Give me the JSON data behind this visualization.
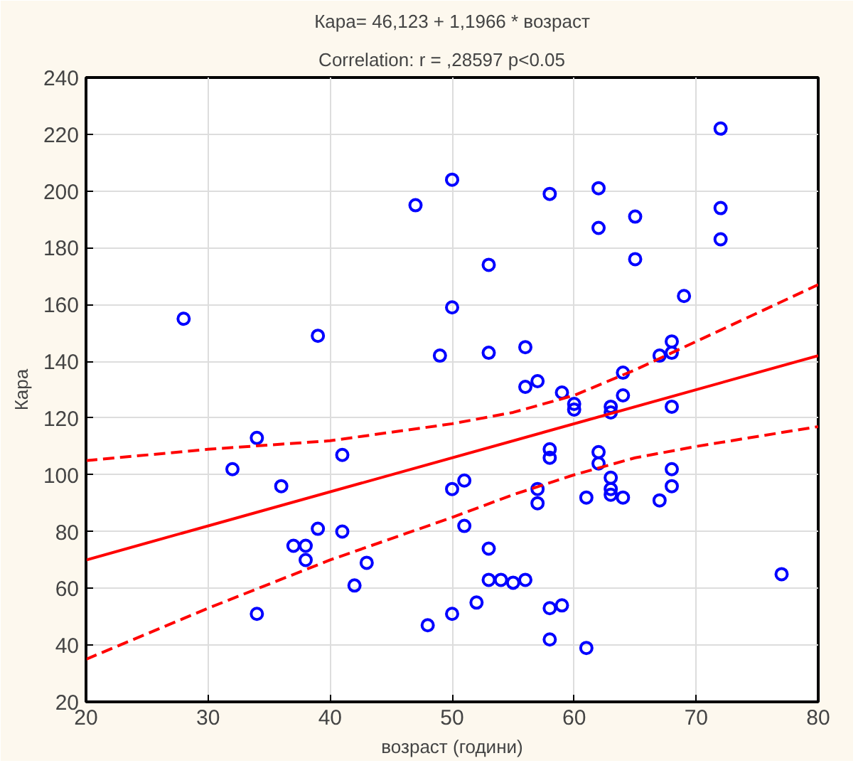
{
  "chart_data": {
    "type": "scatter",
    "title": "Кара= 46,123 + 1,1966 * возраст",
    "subtitle": "Correlation: r = ,28597     p<0.05",
    "xlabel": "возраст (години)",
    "ylabel": "Кара",
    "xlim": [
      20,
      80
    ],
    "xticks": [
      20,
      30,
      40,
      50,
      60,
      70,
      80
    ],
    "ylim": [
      20,
      240
    ],
    "yticks": [
      20,
      40,
      60,
      80,
      100,
      120,
      140,
      160,
      180,
      200,
      220,
      240
    ],
    "grid": true,
    "series": [
      {
        "color": "#0000ff",
        "marker": "circle",
        "x": [
          28,
          32,
          34,
          34,
          36,
          37,
          38,
          38,
          39,
          39,
          41,
          41,
          42,
          43,
          47,
          48,
          49,
          50,
          50,
          50,
          50,
          51,
          51,
          52,
          53,
          53,
          53,
          53,
          54,
          55,
          56,
          56,
          56,
          57,
          57,
          57,
          58,
          58,
          58,
          58,
          58,
          59,
          59,
          60,
          60,
          61,
          61,
          62,
          62,
          62,
          62,
          63,
          63,
          63,
          63,
          63,
          64,
          64,
          64,
          65,
          65,
          67,
          67,
          68,
          68,
          68,
          68,
          68,
          69,
          72,
          72,
          72,
          77
        ],
        "values": [
          155,
          102,
          113,
          51,
          96,
          75,
          75,
          70,
          149,
          81,
          107,
          80,
          61,
          69,
          195,
          47,
          142,
          204,
          159,
          95,
          51,
          98,
          82,
          55,
          174,
          143,
          74,
          63,
          63,
          62,
          145,
          131,
          63,
          133,
          95,
          90,
          199,
          109,
          106,
          53,
          42,
          129,
          54,
          125,
          123,
          92,
          39,
          201,
          187,
          108,
          104,
          124,
          122,
          99,
          95,
          93,
          136,
          128,
          92,
          191,
          176,
          142,
          91,
          147,
          143,
          124,
          102,
          96,
          163,
          222,
          194,
          183,
          65
        ]
      },
      {
        "type": "line",
        "color": "#ff0000",
        "line_style": "solid",
        "x": [
          20,
          80
        ],
        "values": [
          70,
          142
        ]
      },
      {
        "type": "line",
        "color": "#ff0000",
        "line_style": "dashed",
        "x": [
          20,
          30,
          40,
          50,
          55,
          60,
          65,
          70,
          80
        ],
        "values": [
          105,
          109,
          112,
          118,
          122,
          128,
          137,
          147,
          167
        ]
      },
      {
        "type": "line",
        "color": "#ff0000",
        "line_style": "dashed",
        "x": [
          20,
          30,
          40,
          50,
          55,
          60,
          65,
          70,
          80
        ],
        "values": [
          35,
          53,
          70,
          85,
          93,
          100,
          106,
          110,
          117
        ]
      }
    ]
  }
}
